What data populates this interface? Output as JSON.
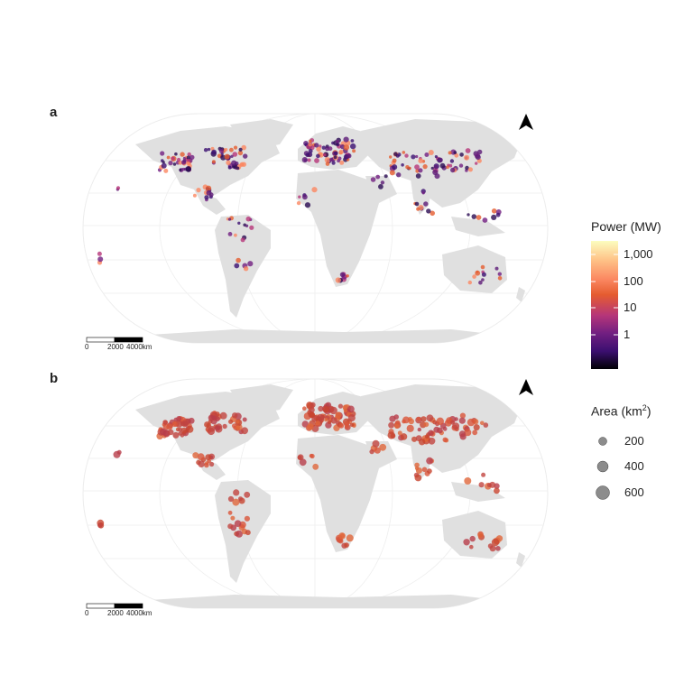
{
  "panels": [
    {
      "label": "a"
    },
    {
      "label": "b"
    }
  ],
  "scalebar": {
    "labels": [
      "0",
      "2000",
      "4000km"
    ]
  },
  "north_arrow": {
    "icon": "north-arrow-icon"
  },
  "power_legend": {
    "title": "Power (MW)",
    "ticks": [
      "1,000",
      "100",
      "10",
      "1"
    ],
    "colormap": [
      "#fcfdbf",
      "#fec287",
      "#fb8761",
      "#e55c30",
      "#b63679",
      "#721f81",
      "#3b0f70",
      "#000004"
    ]
  },
  "area_legend": {
    "title_prefix": "Area (km",
    "title_sup": "2",
    "title_suffix": ")",
    "items": [
      {
        "label": "200",
        "value": 200
      },
      {
        "label": "400",
        "value": 400
      },
      {
        "label": "600",
        "value": 600
      }
    ]
  },
  "colors": {
    "land": "#e0e0e0",
    "grid": "#e6e6e6",
    "point_b": "#c8452f"
  }
}
